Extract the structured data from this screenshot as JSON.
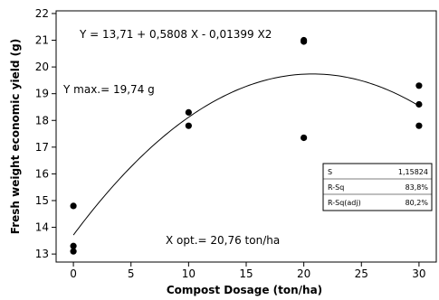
{
  "chart_data": {
    "type": "scatter",
    "xlabel": "Compost Dosage (ton/ha)",
    "ylabel": "Fresh weight economic yield (g)",
    "xlim": [
      -1.5,
      31.5
    ],
    "ylim": [
      12.7,
      22.1
    ],
    "x_ticks": [
      0,
      5,
      10,
      15,
      20,
      25,
      30
    ],
    "y_ticks": [
      13,
      14,
      15,
      16,
      17,
      18,
      19,
      20,
      21,
      22
    ],
    "points": [
      {
        "x": 0,
        "y": 14.8
      },
      {
        "x": 0,
        "y": 13.3
      },
      {
        "x": 0,
        "y": 13.1
      },
      {
        "x": 10,
        "y": 18.3
      },
      {
        "x": 10,
        "y": 17.8
      },
      {
        "x": 20,
        "y": 21.0
      },
      {
        "x": 20,
        "y": 20.95
      },
      {
        "x": 20,
        "y": 17.35
      },
      {
        "x": 30,
        "y": 19.3
      },
      {
        "x": 30,
        "y": 18.6
      },
      {
        "x": 30,
        "y": 17.8
      }
    ],
    "fit": {
      "intercept": 13.71,
      "b1": 0.5808,
      "b2": -0.01399,
      "x_range": [
        0,
        30
      ]
    },
    "annotations": {
      "equation": "Y =  13,71 + 0,5808 X - 0,01399 X2",
      "ymax": "Y max.=  19,74 g",
      "xopt": "X opt.= 20,76 ton/ha"
    },
    "stats": [
      {
        "label": "S",
        "value": "1,15824"
      },
      {
        "label": "R-Sq",
        "value": "83,8%"
      },
      {
        "label": "R-Sq(adj)",
        "value": "80,2%"
      }
    ]
  }
}
